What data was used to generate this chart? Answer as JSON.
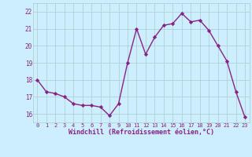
{
  "x": [
    0,
    1,
    2,
    3,
    4,
    5,
    6,
    7,
    8,
    9,
    10,
    11,
    12,
    13,
    14,
    15,
    16,
    17,
    18,
    19,
    20,
    21,
    22,
    23
  ],
  "y": [
    18.0,
    17.3,
    17.2,
    17.0,
    16.6,
    16.5,
    16.5,
    16.4,
    15.9,
    16.6,
    19.0,
    21.0,
    19.5,
    20.5,
    21.2,
    21.3,
    21.9,
    21.4,
    21.5,
    20.9,
    20.0,
    19.1,
    17.3,
    15.8
  ],
  "line_color": "#882288",
  "marker": "D",
  "marker_size": 2.2,
  "bg_color": "#cceeff",
  "grid_color": "#aacccc",
  "xlabel": "Windchill (Refroidissement éolien,°C)",
  "xlabel_color": "#882288",
  "tick_color": "#882288",
  "ylabel_ticks": [
    16,
    17,
    18,
    19,
    20,
    21,
    22
  ],
  "ylim": [
    15.5,
    22.5
  ],
  "xlim": [
    -0.5,
    23.5
  ],
  "linewidth": 1.0
}
